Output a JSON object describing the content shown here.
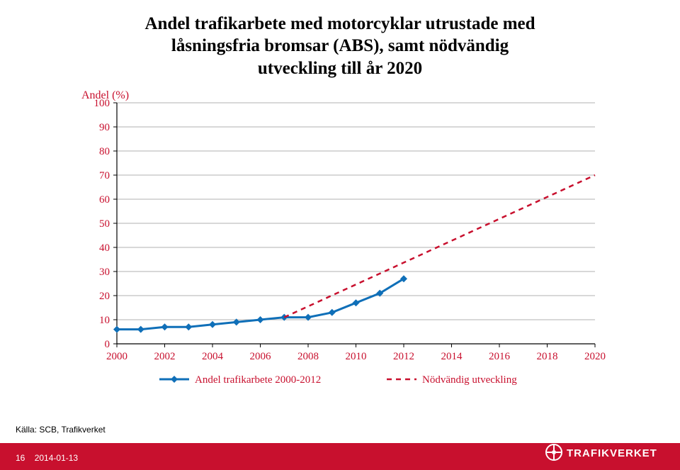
{
  "title_line1": "Andel trafikarbete med motorcyklar utrustade med",
  "title_line2": "låsningsfria bromsar (ABS), samt nödvändig",
  "title_line3": "utveckling till år 2020",
  "source_label": "Källa: SCB, Trafikverket",
  "page_number": "16",
  "page_date": "2014-01-13",
  "brand_name": "TRAFIKVERKET",
  "brand_color": "#c8102e",
  "chart": {
    "type": "line",
    "y_axis_title": "Andel (%)",
    "y_axis_title_fontsize": 16,
    "xlim": [
      2000,
      2020
    ],
    "ylim": [
      0,
      100
    ],
    "y_ticks": [
      0,
      10,
      20,
      30,
      40,
      50,
      60,
      70,
      80,
      90,
      100
    ],
    "x_ticks": [
      2000,
      2002,
      2004,
      2006,
      2008,
      2010,
      2012,
      2014,
      2016,
      2018,
      2020
    ],
    "tick_fontsize": 15,
    "tick_color": "#c8102e",
    "grid_color": "#b0b0b0",
    "axis_color": "#000000",
    "background_color": "#ffffff",
    "series": [
      {
        "name": "Andel trafikarbete 2000-2012",
        "color": "#0f6fb8",
        "marker": "diamond",
        "marker_size": 10,
        "line_width": 3,
        "dash": "none",
        "x": [
          2000,
          2001,
          2002,
          2003,
          2004,
          2005,
          2006,
          2007,
          2008,
          2009,
          2010,
          2011,
          2012
        ],
        "y": [
          6,
          6,
          7,
          7,
          8,
          9,
          10,
          11,
          11,
          13,
          17,
          21,
          27
        ]
      },
      {
        "name": "Nödvändig utveckling",
        "color": "#c8102e",
        "marker": "none",
        "marker_size": 0,
        "line_width": 2.5,
        "dash": "7,6",
        "x": [
          2007,
          2020
        ],
        "y": [
          11,
          70
        ]
      }
    ],
    "legend": {
      "position": "bottom-center",
      "fontsize": 15,
      "text_color": "#c8102e",
      "items": [
        "Andel trafikarbete 2000-2012",
        "Nödvändig utveckling"
      ]
    }
  }
}
